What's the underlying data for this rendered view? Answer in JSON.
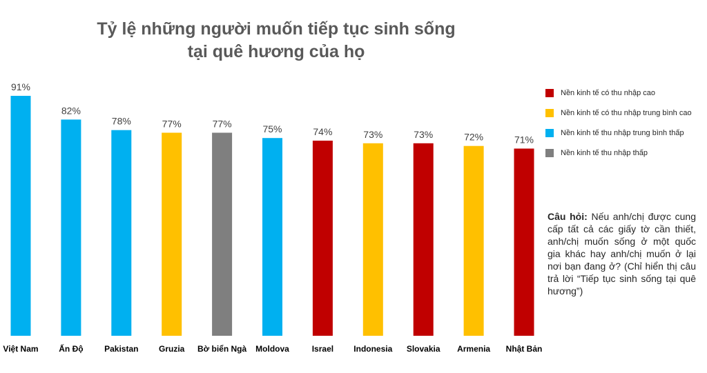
{
  "title": {
    "line1": "Tỷ lệ những người muốn tiếp tục sinh sống",
    "line2": "tại quê hương của họ"
  },
  "colors": {
    "cao": "#C00000",
    "trung_binh_cao": "#FFC000",
    "trung_binh_thap": "#00B0F0",
    "thap": "#7F7F7F"
  },
  "legend": [
    {
      "label": "Nền kinh tế có thu nhập cao",
      "color": "#C00000"
    },
    {
      "label": "Nền kinh tế có thu nhập trung bình cao",
      "color": "#FFC000"
    },
    {
      "label": "Nền kinh tế thu nhập trung bình thấp",
      "color": "#00B0F0"
    },
    {
      "label": "Nền kinh tế thu nhập thấp",
      "color": "#7F7F7F"
    }
  ],
  "question": {
    "label": "Câu hỏi:",
    "text": " Nếu anh/chị được cung cấp tất cả các giấy tờ cần thiết, anh/chị muốn sống ở một quốc gia khác hay anh/chị muốn ở lại nơi bạn đang ở? (Chỉ hiển thị câu trả lời “Tiếp tục sinh sống tại quê hương”)"
  },
  "chart_data": {
    "type": "bar",
    "title": "Tỷ lệ những người muốn tiếp tục sinh sống tại quê hương của họ",
    "xlabel": "",
    "ylabel": "",
    "ylim": [
      0,
      100
    ],
    "grid": false,
    "legend_position": "right",
    "categories": [
      "Việt Nam",
      "Ấn Độ",
      "Pakistan",
      "Gruzia",
      "Bờ biển Ngà",
      "Moldova",
      "Israel",
      "Indonesia",
      "Slovakia",
      "Armenia",
      "Nhật Bản"
    ],
    "values": [
      91,
      82,
      78,
      77,
      77,
      75,
      74,
      73,
      73,
      72,
      71
    ],
    "labels": [
      "91%",
      "82%",
      "78%",
      "77%",
      "77%",
      "75%",
      "74%",
      "73%",
      "73%",
      "72%",
      "71%"
    ],
    "colors": [
      "#00B0F0",
      "#00B0F0",
      "#00B0F0",
      "#FFC000",
      "#7F7F7F",
      "#00B0F0",
      "#C00000",
      "#FFC000",
      "#C00000",
      "#FFC000",
      "#C00000"
    ]
  }
}
